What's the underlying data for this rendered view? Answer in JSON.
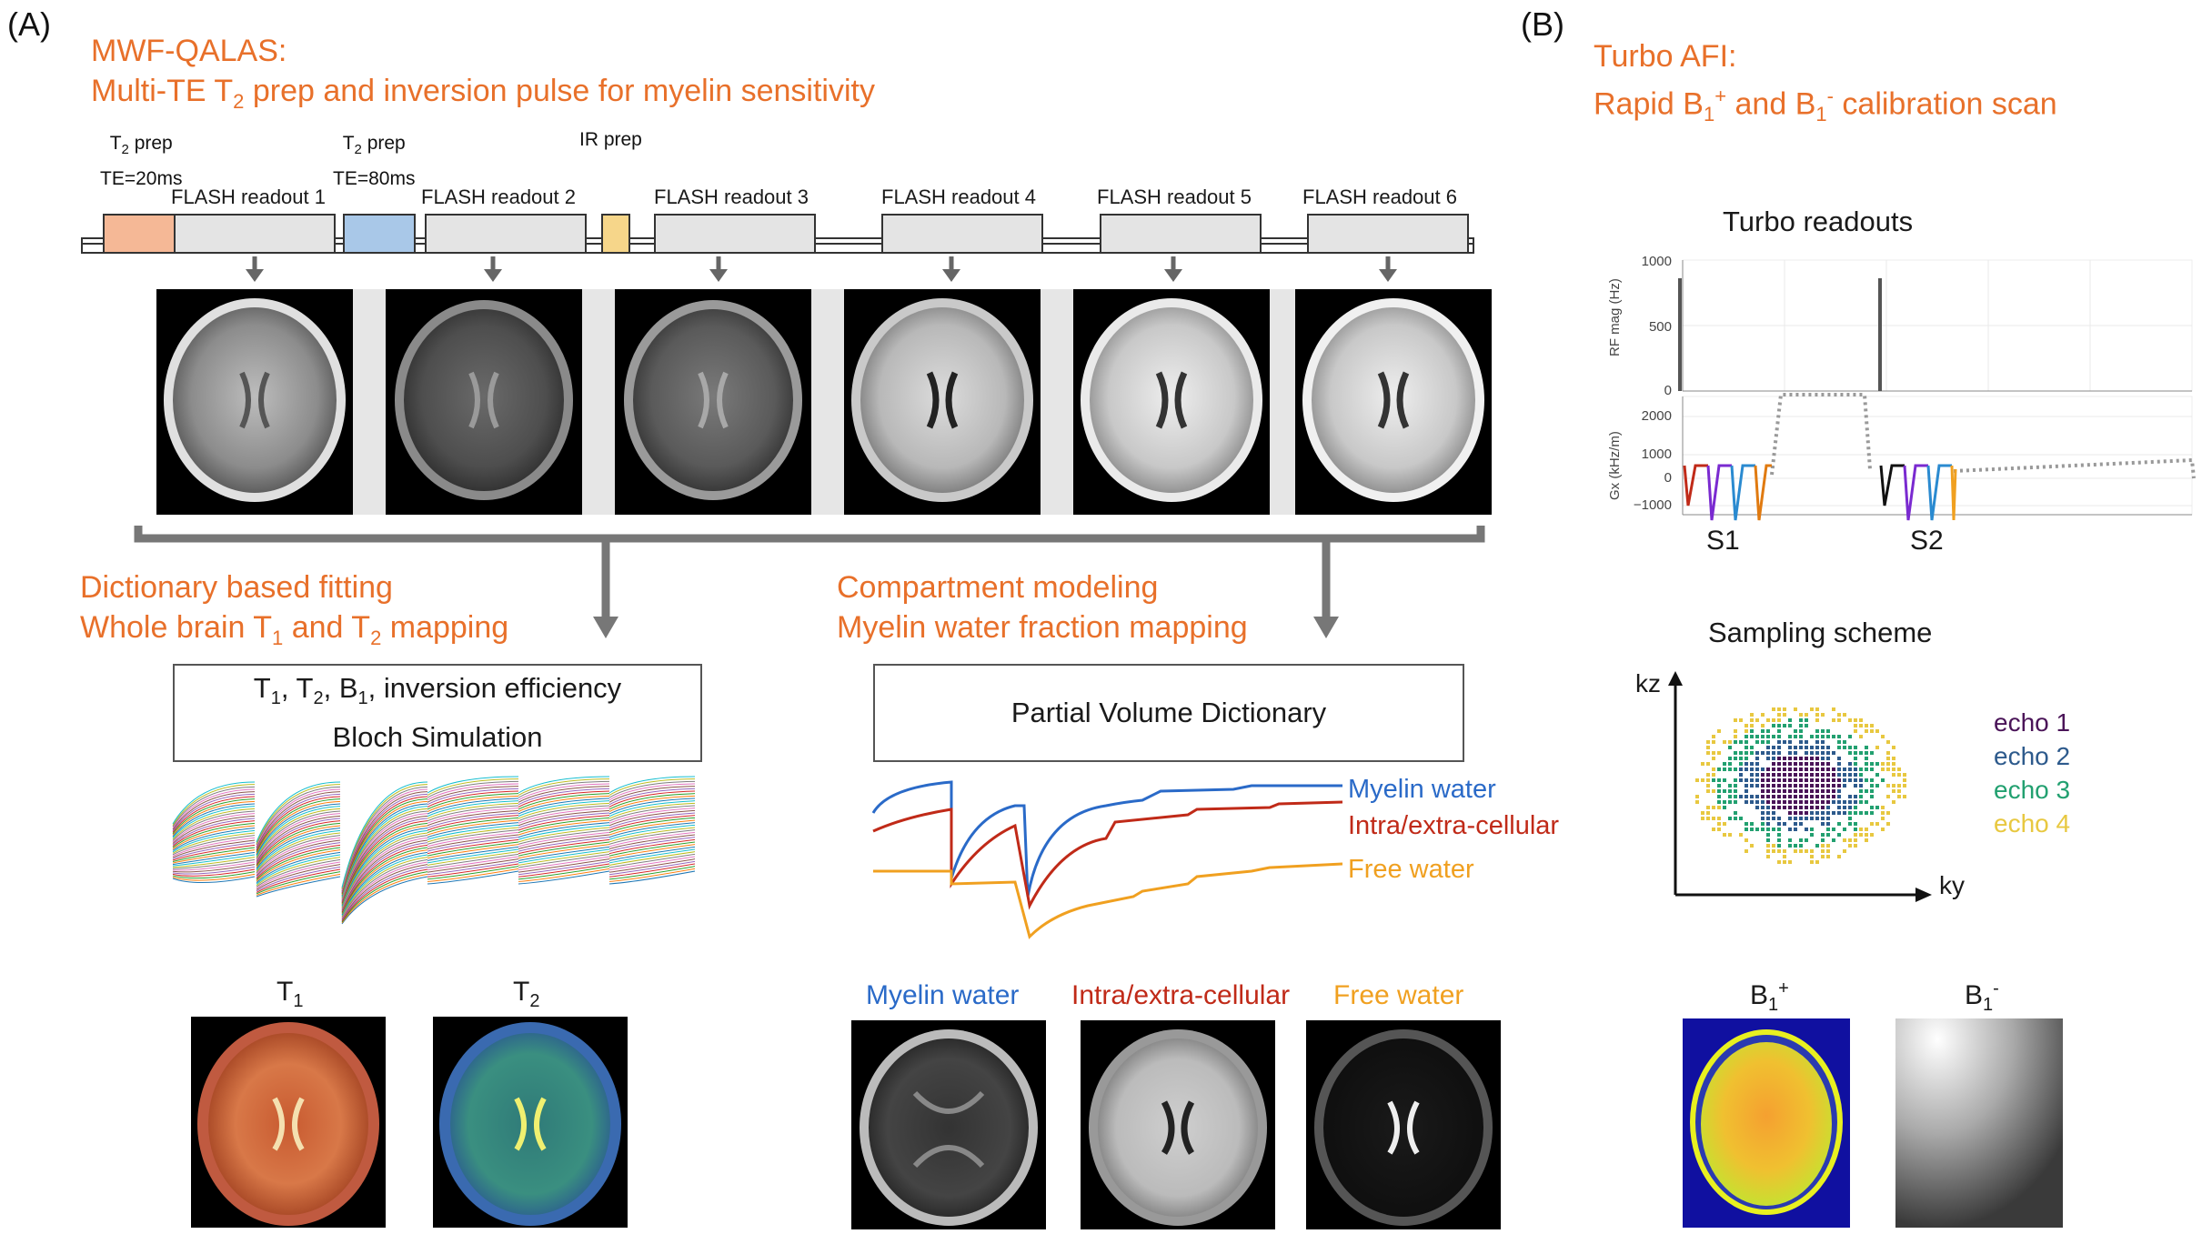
{
  "panelA": {
    "label": "(A)",
    "title_line1": "MWF-QALAS:",
    "title_line2_pre": "Multi-TE T",
    "title_line2_sub": "2",
    "title_line2_post": " prep and inversion pulse for myelin sensitivity",
    "prep1_pre": "T",
    "prep1_sub": "2",
    "prep1_post": " prep",
    "prep1_te": "TE=20ms",
    "prep2_pre": "T",
    "prep2_sub": "2",
    "prep2_post": " prep",
    "prep2_te": "TE=80ms",
    "prep3": "IR prep",
    "readouts": [
      "FLASH readout 1",
      "FLASH readout 2",
      "FLASH readout 3",
      "FLASH readout 4",
      "FLASH readout 5",
      "FLASH readout 6"
    ],
    "fit_left_line1": "Dictionary based fitting",
    "fit_left_line2_pre": "Whole brain T",
    "fit_left_line2_sub1": "1",
    "fit_left_line2_mid": " and T",
    "fit_left_line2_sub2": "2",
    "fit_left_line2_post": " mapping",
    "fit_right_line1": "Compartment modeling",
    "fit_right_line2": "Myelin water fraction mapping",
    "bloch_T1": "T",
    "bloch_s1": "1",
    "bloch_T2": ", T",
    "bloch_s2": "2",
    "bloch_B1": ", B",
    "bloch_s3": "1",
    "bloch_rest": ", inversion efficiency",
    "bloch_line2": "Bloch Simulation",
    "pvd_box": "Partial Volume Dictionary",
    "legend": {
      "myelin": "Myelin water",
      "intra": "Intra/extra-cellular",
      "free": "Free water"
    },
    "map_T1_pre": "T",
    "map_T1_sub": "1",
    "map_T2_pre": "T",
    "map_T2_sub": "2",
    "map_myelin": "Myelin water",
    "map_intra": "Intra/extra-cellular",
    "map_free": "Free water"
  },
  "panelB": {
    "label": "(B)",
    "title_line1": "Turbo AFI:",
    "title_line2_a": "Rapid B",
    "title_line2_s1": "1",
    "title_line2_p1": "+",
    "title_line2_b": " and B",
    "title_line2_s2": "1",
    "title_line2_p2": "-",
    "title_line2_c": " calibration scan",
    "turbo_title": "Turbo readouts",
    "rf_ylabel": "RF mag (Hz)",
    "rf_ticks": [
      "1000",
      "500",
      "0"
    ],
    "gx_ylabel": "Gx (kHz/m)",
    "gx_ticks": [
      "2000",
      "1000",
      "0",
      "−1000"
    ],
    "s1": "S1",
    "s2": "S2",
    "sampling_title": "Sampling scheme",
    "kz": "kz",
    "ky": "ky",
    "echoes": [
      "echo 1",
      "echo 2",
      "echo 3",
      "echo 4"
    ],
    "b1p_pre": "B",
    "b1p_sub": "1",
    "b1p_sup": "+",
    "b1m_pre": "B",
    "b1m_sub": "1",
    "b1m_sup": "-"
  },
  "colors": {
    "accent_orange": "#e8702a",
    "myelin_blue": "#2a6ac8",
    "intra_red": "#c02a18",
    "free_orange": "#f0a020",
    "echo1": "#4a1458",
    "echo2": "#2d5a8c",
    "echo3": "#22a070",
    "echo4": "#e8c840",
    "t2prep1": "#f5b896",
    "t2prep2": "#a9c8e8",
    "irprep": "#f6d68a"
  }
}
